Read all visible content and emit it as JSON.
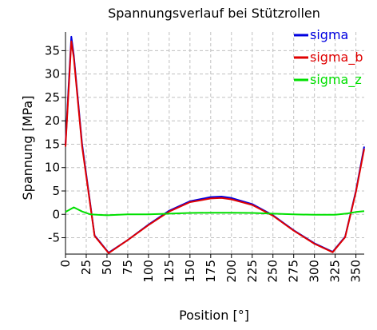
{
  "chart_data": {
    "type": "line",
    "title": "Spannungsverlauf bei Stützrollen",
    "xlabel": "Position [°]",
    "ylabel": "Spannung [MPa]",
    "xlim": [
      0,
      360
    ],
    "ylim": [
      -8.5,
      39
    ],
    "x_ticks": [
      0,
      25,
      50,
      75,
      100,
      125,
      150,
      175,
      200,
      225,
      250,
      275,
      300,
      325,
      350
    ],
    "y_ticks": [
      -5,
      0,
      5,
      10,
      15,
      20,
      25,
      30,
      35
    ],
    "grid": true,
    "legend_position": "top-right",
    "series": [
      {
        "name": "sigma",
        "color": "#0000e0",
        "x": [
          0,
          7,
          10,
          20,
          35,
          52,
          75,
          100,
          125,
          150,
          175,
          188,
          200,
          225,
          250,
          275,
          300,
          322,
          337,
          350,
          360
        ],
        "y": [
          15,
          38,
          34,
          15,
          -4.5,
          -8.2,
          -5.5,
          -2.2,
          0.8,
          2.8,
          3.7,
          3.8,
          3.5,
          2.2,
          -0.2,
          -3.4,
          -6.2,
          -8.0,
          -4.8,
          5.0,
          14.5
        ]
      },
      {
        "name": "sigma_b",
        "color": "#e00000",
        "x": [
          0,
          7,
          10,
          20,
          35,
          52,
          75,
          100,
          125,
          150,
          175,
          188,
          200,
          225,
          250,
          275,
          300,
          322,
          337,
          350,
          360
        ],
        "y": [
          14.5,
          37,
          33.5,
          14.5,
          -4.6,
          -8.3,
          -5.5,
          -2.3,
          0.6,
          2.6,
          3.4,
          3.5,
          3.2,
          2.0,
          -0.3,
          -3.5,
          -6.3,
          -8.1,
          -4.9,
          4.8,
          14.0
        ]
      },
      {
        "name": "sigma_z",
        "color": "#00e000",
        "x": [
          0,
          5,
          10,
          20,
          30,
          50,
          75,
          100,
          125,
          150,
          175,
          200,
          225,
          250,
          275,
          300,
          325,
          340,
          350,
          360
        ],
        "y": [
          0.5,
          1.0,
          1.5,
          0.6,
          0.0,
          -0.2,
          0.0,
          0.0,
          0.15,
          0.3,
          0.35,
          0.35,
          0.3,
          0.15,
          0.0,
          -0.1,
          -0.1,
          0.2,
          0.5,
          0.7
        ]
      }
    ]
  }
}
